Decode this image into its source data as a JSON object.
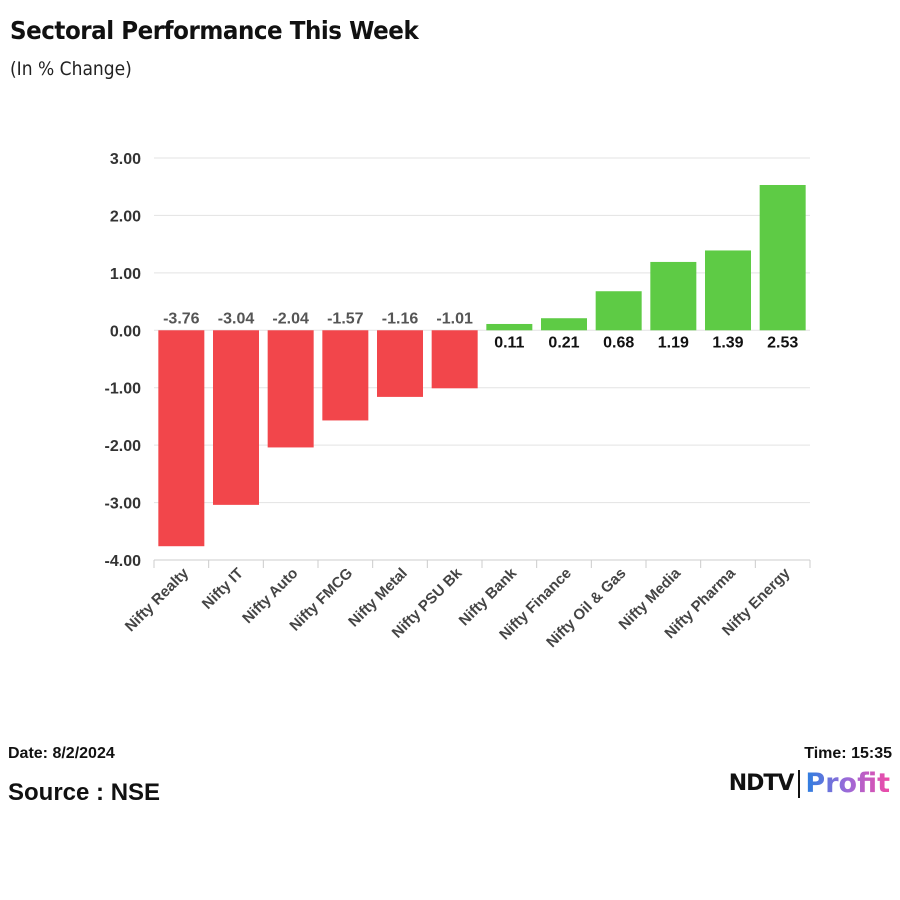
{
  "chart_data": {
    "type": "bar",
    "title": "Sectoral Performance This Week",
    "subtitle": "(In % Change)",
    "categories": [
      "Nifty Realty",
      "Nifty IT",
      "Nifty Auto",
      "Nifty FMCG",
      "Nifty Metal",
      "Nifty PSU Bk",
      "Nifty Bank",
      "Nifty Finance",
      "Nifty Oil & Gas",
      "Nifty Media",
      "Nifty Pharma",
      "Nifty Energy"
    ],
    "values": [
      -3.76,
      -3.04,
      -2.04,
      -1.57,
      -1.16,
      -1.01,
      0.11,
      0.21,
      0.68,
      1.19,
      1.39,
      2.53
    ],
    "yticks": [
      "3.00",
      "2.00",
      "1.00",
      "0.00",
      "-1.00",
      "-2.00",
      "-3.00",
      "-4.00"
    ],
    "ylim": [
      -4,
      3
    ],
    "grid": true,
    "xlabel": "",
    "ylabel": "",
    "colors": {
      "positive": "#5ecb45",
      "negative": "#f2464b"
    }
  },
  "footer": {
    "date": "Date: 8/2/2024",
    "source": "Source : NSE",
    "time": "Time: 15:35",
    "logo_left": "NDTV",
    "logo_right": "Profit"
  }
}
